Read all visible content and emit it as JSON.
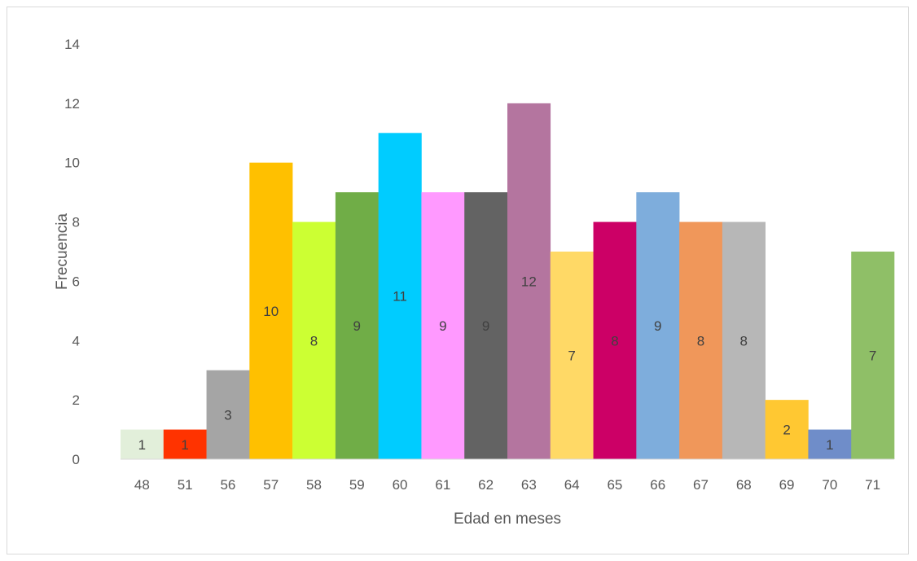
{
  "chart_data": {
    "type": "bar",
    "title": "",
    "xlabel": "Edad en meses",
    "ylabel": "Frecuencia",
    "ylim": [
      0,
      14
    ],
    "yticks": [
      0,
      2,
      4,
      6,
      8,
      10,
      12,
      14
    ],
    "grid": false,
    "legend": "none",
    "categories": [
      "48",
      "51",
      "56",
      "57",
      "58",
      "59",
      "60",
      "61",
      "62",
      "63",
      "64",
      "65",
      "66",
      "67",
      "68",
      "69",
      "70",
      "71"
    ],
    "values": [
      1,
      1,
      3,
      10,
      8,
      9,
      11,
      9,
      9,
      12,
      7,
      8,
      9,
      8,
      8,
      2,
      1,
      7
    ],
    "colors": [
      "#e2efda",
      "#ff3300",
      "#a5a5a5",
      "#ffc000",
      "#ccff33",
      "#70ad47",
      "#00ccff",
      "#ff99ff",
      "#636363",
      "#b4759f",
      "#ffd966",
      "#cc0066",
      "#7eaddc",
      "#f0975a",
      "#b7b7b7",
      "#ffc832",
      "#6f8dc9",
      "#8fbf67"
    ]
  }
}
